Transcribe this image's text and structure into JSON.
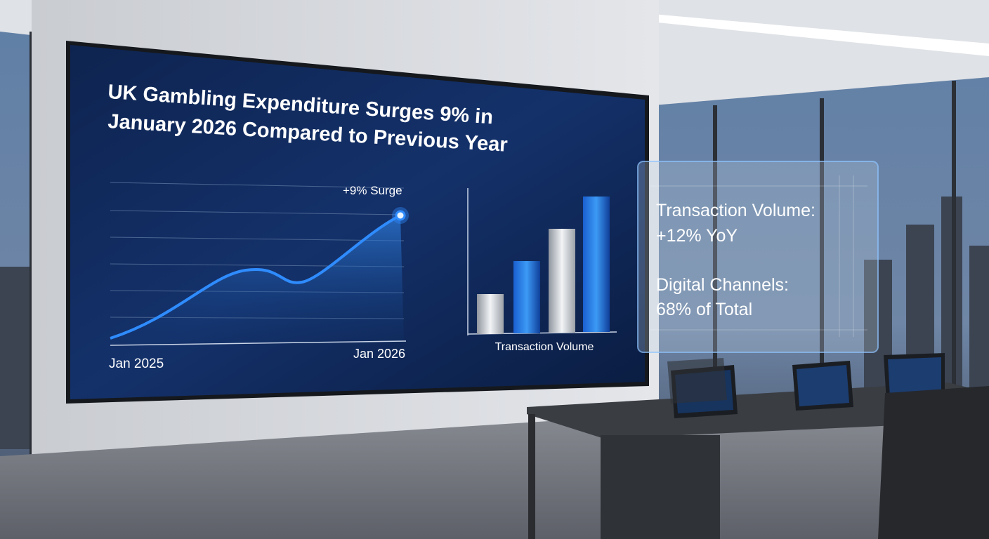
{
  "screen": {
    "title_lines": [
      "UK Gambling Expenditure Surges 9% in",
      "January 2026 Compared to Previous Year"
    ],
    "line_chart": {
      "annotation": "+9% Surge",
      "start_label": "Jan 2025",
      "end_label": "Jan 2026"
    },
    "bar_chart": {
      "label": "Transaction Volume"
    }
  },
  "glass_panel": {
    "items": [
      {
        "label": "Transaction Volume:",
        "value": "+12% YoY"
      },
      {
        "label": "Digital Channels:",
        "value": "68% of Total"
      }
    ]
  }
}
